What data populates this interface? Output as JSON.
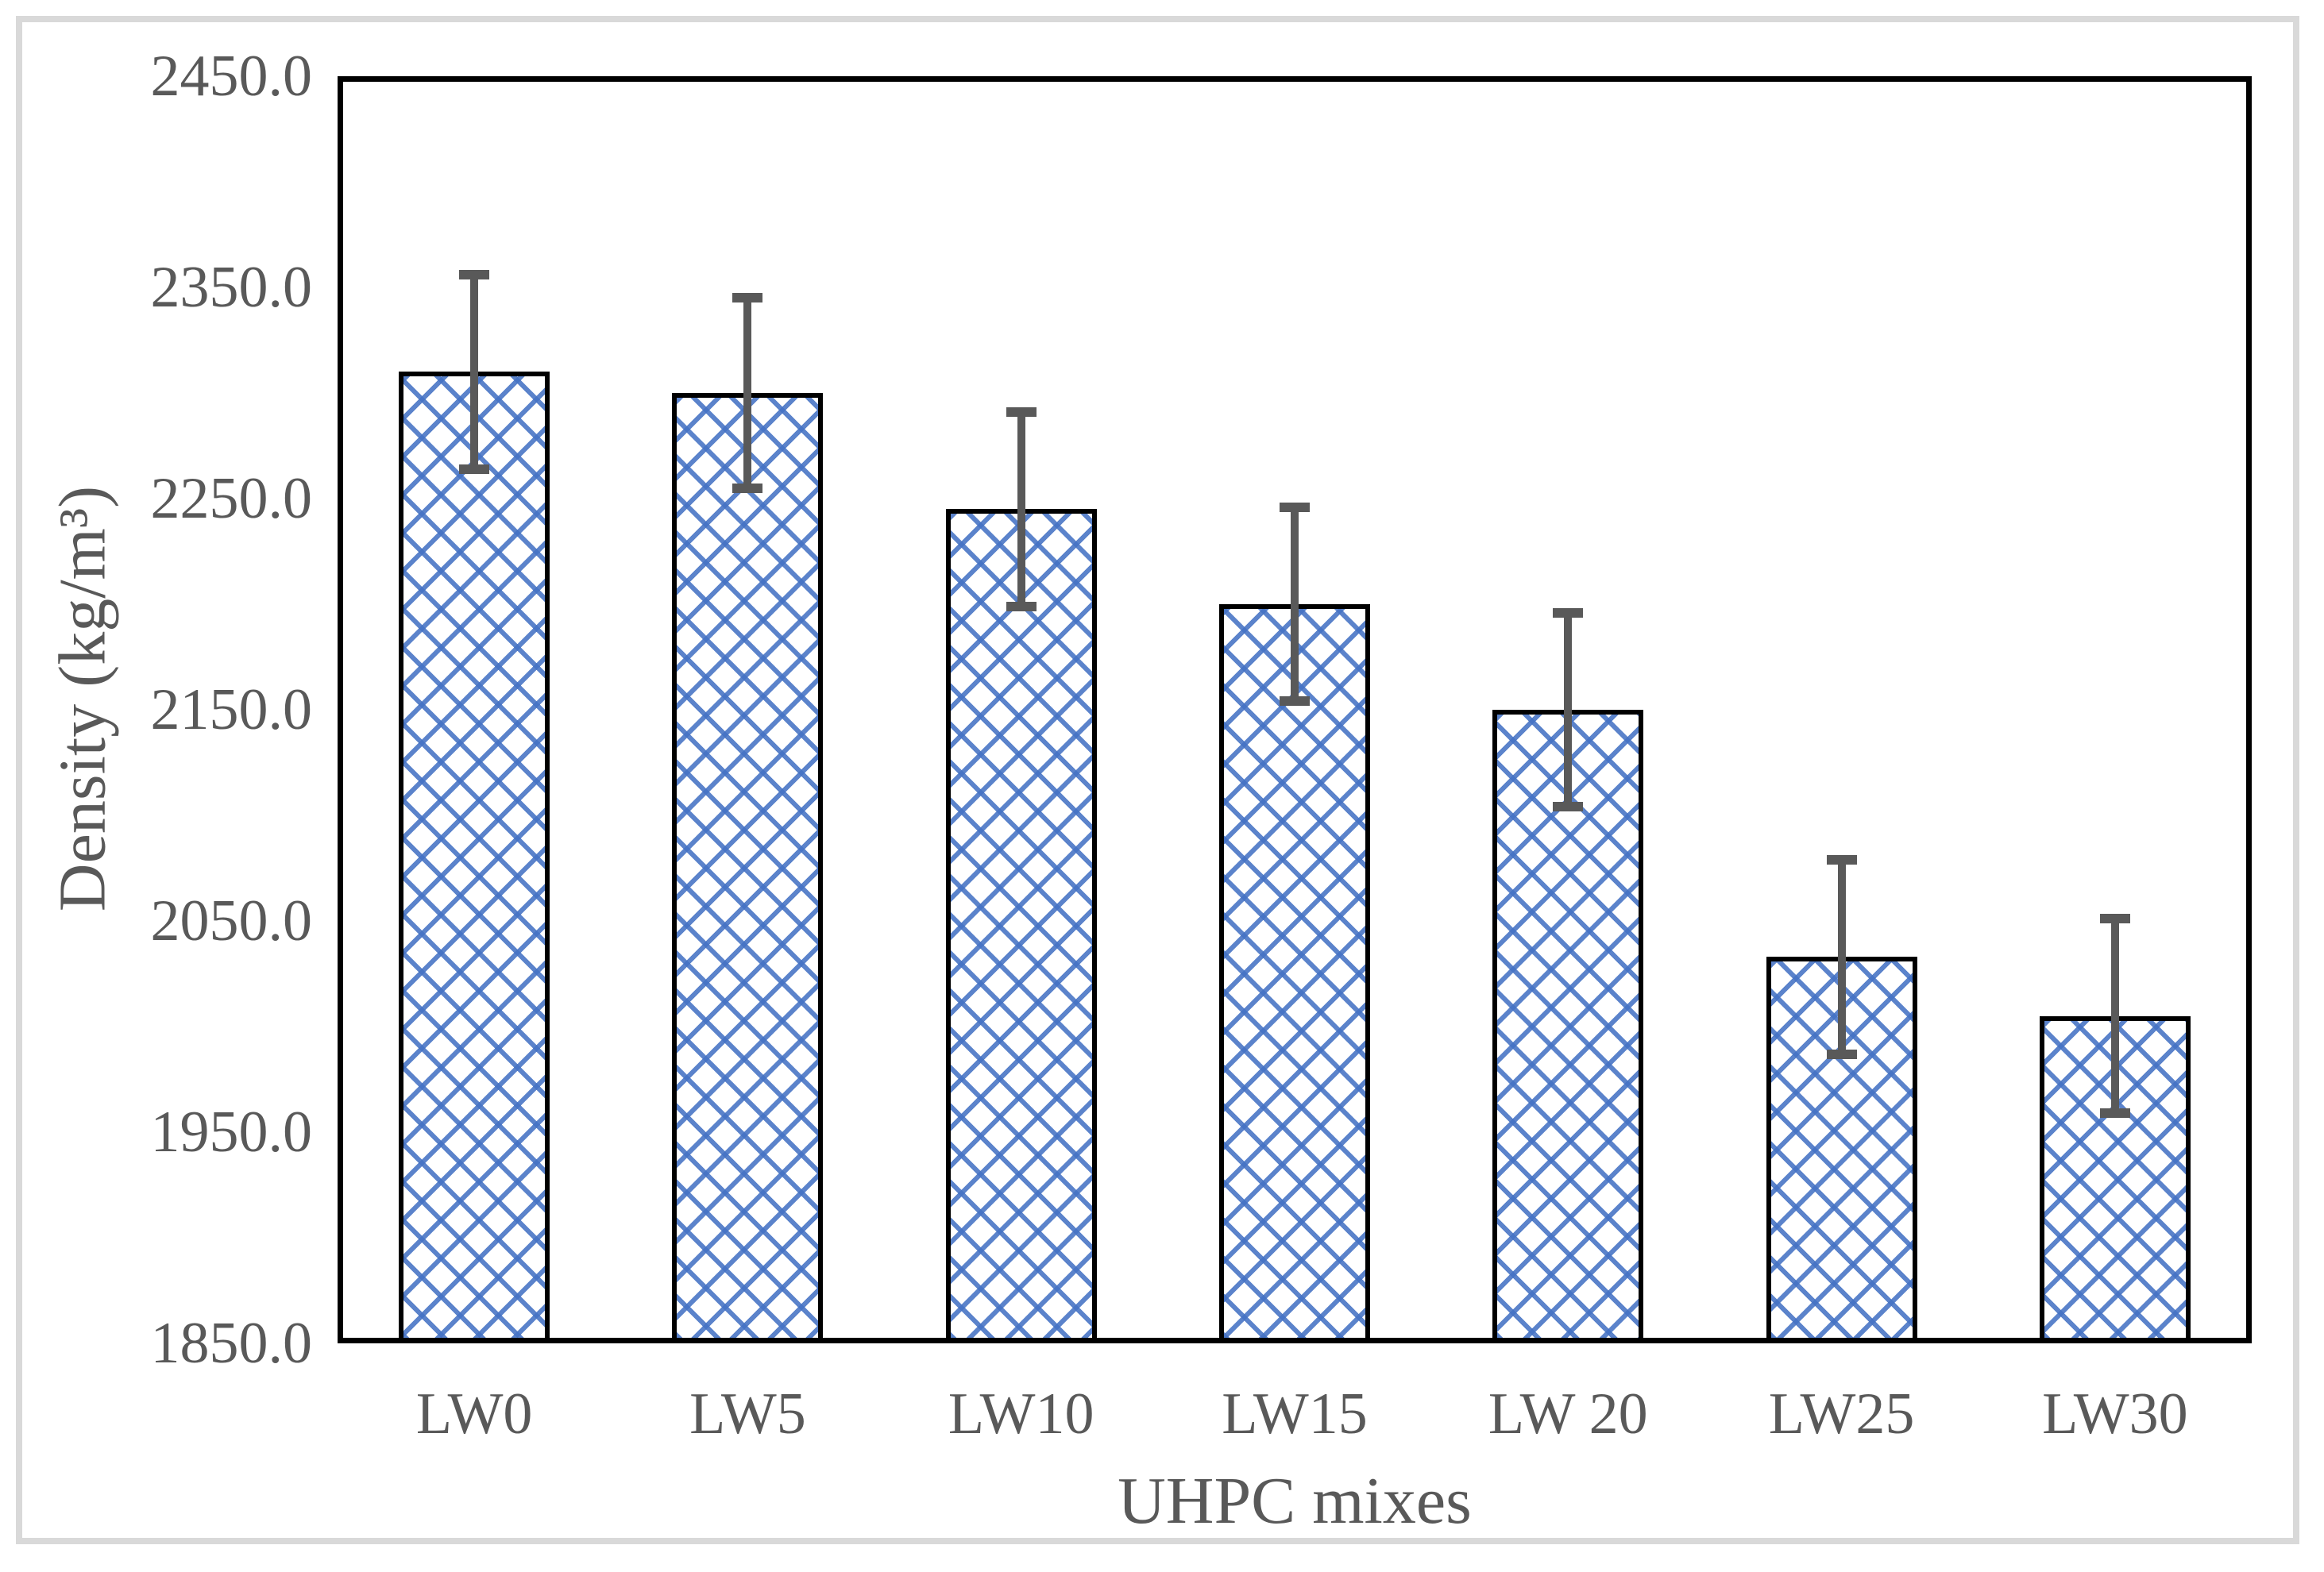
{
  "chart_data": {
    "type": "bar",
    "title": "",
    "xlabel": "UHPC mixes",
    "ylabel": "Density (kg/m³)",
    "categories": [
      "LW0",
      "LW5",
      "LW10",
      "LW15",
      "LW 20",
      "LW25",
      "LW30"
    ],
    "values": [
      2310,
      2300,
      2245,
      2200,
      2150,
      2033,
      2005
    ],
    "error_bars_plus_minus": [
      46,
      45,
      46,
      46,
      46,
      46,
      46
    ],
    "ylim": [
      1850,
      2450
    ],
    "ytick_step": 100,
    "ytick_labels": [
      "2450.0",
      "2350.0",
      "2250.0",
      "2150.0",
      "2050.0",
      "1950.0",
      "1850.0"
    ],
    "grid": false,
    "legend_position": "none",
    "bar_pattern_style": "dotted-diagonal-crosshatch",
    "colors": {
      "bar_pattern": "#4472C4",
      "bar_background": "#FFFFFF",
      "bar_border": "#000000",
      "error_bar": "#595959",
      "axis_text": "#595959",
      "plot_border": "#000000",
      "figure_frame": "#D9D9D9"
    }
  }
}
